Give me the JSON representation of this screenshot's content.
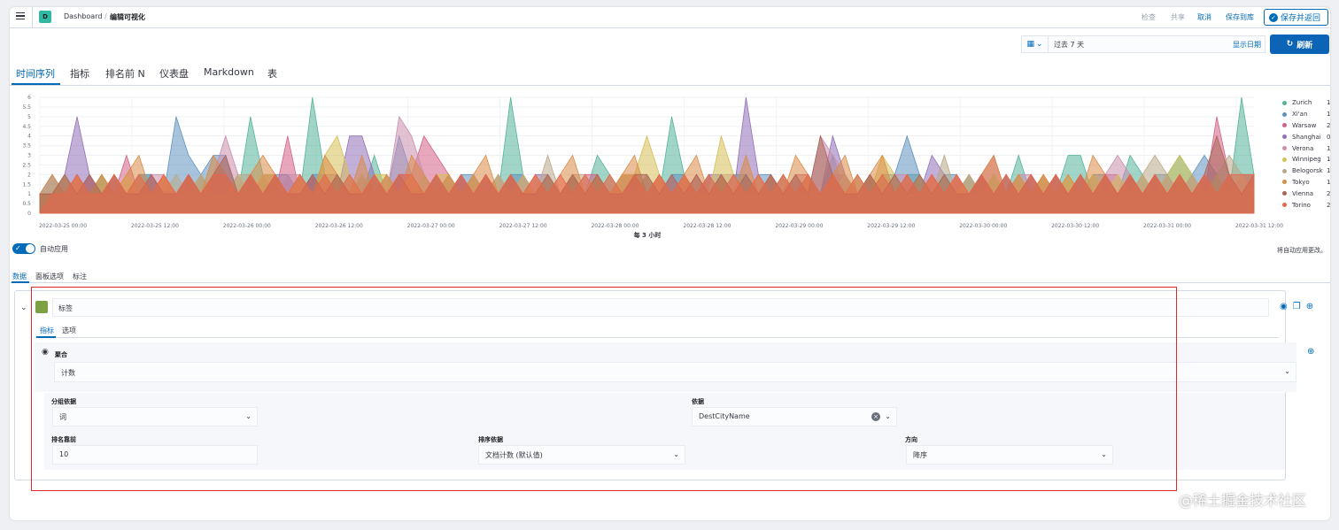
{
  "topbar": {
    "space_initial": "D",
    "breadcrumb_root": "Dashboard",
    "breadcrumb_sep": "/",
    "breadcrumb_current": "编辑可视化",
    "inspect_label": "检查",
    "share_label": "共享",
    "cancel_label": "取消",
    "save_to_library_label": "保存到库",
    "save_and_return_label": "保存并返回"
  },
  "query": {
    "date_range": "过去 7 天",
    "show_dates_label": "显示日期",
    "refresh_label": "刷新"
  },
  "tabs": [
    "时间序列",
    "指标",
    "排名前 N",
    "仪表盘",
    "Markdown",
    "表"
  ],
  "chart_data": {
    "type": "area",
    "xlabel": "每 3 小时",
    "x_ticks": [
      "2022-03-25 00:00",
      "2022-03-25 12:00",
      "2022-03-26 00:00",
      "2022-03-26 12:00",
      "2022-03-27 00:00",
      "2022-03-27 12:00",
      "2022-03-28 00:00",
      "2022-03-28 12:00",
      "2022-03-29 00:00",
      "2022-03-29 12:00",
      "2022-03-30 00:00",
      "2022-03-30 12:00",
      "2022-03-31 00:00",
      "2022-03-31 12:00"
    ],
    "y_ticks": [
      "6",
      "5.5",
      "5",
      "4.5",
      "4",
      "3.5",
      "3",
      "2.5",
      "2",
      "1.5",
      "1",
      "0.5",
      "0"
    ],
    "ylim": [
      0,
      6
    ],
    "series": [
      {
        "name": "Zurich",
        "color": "#54b399",
        "value_label": "1",
        "values": [
          1,
          1,
          1,
          2,
          1,
          2,
          1,
          1,
          2,
          2,
          1,
          1,
          1,
          2,
          1,
          2,
          1,
          5,
          2,
          1,
          2,
          1,
          6,
          2,
          1,
          2,
          1,
          3,
          1,
          2,
          2,
          1,
          1,
          2,
          1,
          2,
          1,
          1,
          6,
          2,
          1,
          2,
          1,
          2,
          1,
          3,
          2,
          1,
          2,
          1,
          1,
          5,
          2,
          1,
          2,
          1,
          2,
          2,
          1,
          1,
          2,
          1,
          2,
          1,
          3,
          1,
          2,
          1,
          2,
          1,
          2,
          2,
          1,
          2,
          1,
          2,
          1,
          2,
          1,
          3,
          1,
          2,
          1,
          3,
          3,
          1,
          2,
          1,
          3,
          2,
          1,
          2,
          3,
          2,
          1,
          2,
          1,
          6,
          2
        ]
      },
      {
        "name": "Xi'an",
        "color": "#6092c0",
        "value_label": "1",
        "values": [
          1,
          2,
          1,
          2,
          1,
          2,
          1,
          1,
          2,
          2,
          1,
          5,
          3,
          2,
          3,
          3,
          1,
          2,
          1,
          2,
          2,
          1,
          2,
          2,
          1,
          2,
          1,
          2,
          1,
          4,
          2,
          1,
          2,
          1,
          2,
          2,
          1,
          1,
          2,
          2,
          1,
          2,
          1,
          2,
          1,
          2,
          1,
          2,
          2,
          1,
          1,
          2,
          2,
          1,
          2,
          1,
          2,
          1,
          2,
          2,
          1,
          1,
          2,
          1,
          2,
          2,
          1,
          1,
          2,
          2,
          4,
          2,
          1,
          2,
          2,
          1,
          2,
          1,
          2,
          1,
          2,
          1,
          2,
          1,
          1,
          2,
          2,
          1,
          2,
          1,
          2,
          2,
          1,
          2,
          3,
          2,
          1,
          2,
          2
        ]
      },
      {
        "name": "Warsaw",
        "color": "#d36086",
        "value_label": "2",
        "values": [
          1,
          1,
          2,
          1,
          2,
          1,
          1,
          3,
          1,
          2,
          1,
          1,
          2,
          1,
          2,
          2,
          1,
          2,
          1,
          1,
          4,
          1,
          2,
          1,
          2,
          1,
          2,
          1,
          2,
          1,
          2,
          4,
          3,
          2,
          1,
          2,
          1,
          2,
          1,
          2,
          1,
          2,
          1,
          1,
          2,
          2,
          1,
          2,
          2,
          1,
          2,
          1,
          2,
          1,
          2,
          1,
          2,
          1,
          1,
          2,
          1,
          2,
          2,
          1,
          2,
          2,
          1,
          2,
          1,
          2,
          1,
          1,
          2,
          1,
          2,
          1,
          2,
          3,
          1,
          2,
          1,
          2,
          1,
          1,
          2,
          1,
          2,
          2,
          1,
          2,
          1,
          2,
          1,
          2,
          1,
          5,
          2,
          1,
          2
        ]
      },
      {
        "name": "Shanghai",
        "color": "#9170b8",
        "value_label": "0",
        "values": [
          1,
          1,
          2,
          5,
          2,
          1,
          2,
          1,
          1,
          1,
          2,
          1,
          1,
          2,
          1,
          1,
          2,
          1,
          2,
          2,
          1,
          2,
          1,
          2,
          1,
          4,
          4,
          2,
          1,
          2,
          2,
          1,
          2,
          1,
          2,
          1,
          2,
          1,
          2,
          1,
          2,
          2,
          1,
          2,
          1,
          2,
          1,
          2,
          1,
          2,
          1,
          1,
          2,
          1,
          2,
          2,
          1,
          6,
          2,
          1,
          2,
          1,
          2,
          1,
          4,
          2,
          1,
          2,
          1,
          1,
          2,
          1,
          3,
          2,
          1,
          2,
          1,
          2,
          1,
          2,
          1,
          1,
          2,
          1,
          2,
          1,
          2,
          1,
          2,
          1,
          2,
          1,
          2,
          1,
          2,
          1,
          2,
          1,
          2
        ]
      },
      {
        "name": "Verona",
        "color": "#ca8eae",
        "value_label": "1",
        "values": [
          1,
          1,
          1,
          2,
          1,
          1,
          2,
          1,
          1,
          2,
          2,
          1,
          2,
          1,
          2,
          4,
          2,
          1,
          2,
          1,
          2,
          2,
          1,
          2,
          1,
          2,
          1,
          2,
          1,
          5,
          4,
          2,
          1,
          2,
          1,
          2,
          1,
          2,
          1,
          2,
          1,
          2,
          1,
          2,
          1,
          2,
          1,
          2,
          1,
          2,
          1,
          2,
          1,
          2,
          1,
          2,
          2,
          1,
          2,
          1,
          2,
          1,
          1,
          4,
          3,
          2,
          1,
          2,
          1,
          2,
          2,
          1,
          2,
          1,
          2,
          1,
          1,
          2,
          1,
          2,
          2,
          1,
          2,
          1,
          2,
          1,
          2,
          3,
          2,
          1,
          2,
          1,
          2,
          1,
          2,
          1,
          2,
          1,
          2
        ]
      },
      {
        "name": "Winnipeg",
        "color": "#d6bf57",
        "value_label": "1",
        "values": [
          1,
          1,
          2,
          1,
          1,
          2,
          1,
          2,
          1,
          1,
          2,
          1,
          1,
          2,
          1,
          1,
          2,
          1,
          2,
          2,
          1,
          2,
          1,
          3,
          4,
          2,
          1,
          2,
          2,
          1,
          2,
          1,
          2,
          2,
          1,
          2,
          1,
          2,
          1,
          2,
          1,
          2,
          1,
          2,
          1,
          2,
          1,
          2,
          2,
          4,
          2,
          1,
          2,
          1,
          1,
          4,
          2,
          1,
          2,
          1,
          2,
          1,
          2,
          1,
          2,
          1,
          2,
          1,
          3,
          2,
          1,
          2,
          1,
          2,
          1,
          2,
          1,
          2,
          1,
          2,
          1,
          2,
          1,
          2,
          1,
          2,
          1,
          2,
          1,
          2,
          1,
          2,
          3,
          2,
          1,
          2,
          1,
          2,
          1
        ]
      },
      {
        "name": "Belogorsk",
        "color": "#b9a888",
        "value_label": "1",
        "values": [
          1,
          1,
          1,
          2,
          1,
          1,
          2,
          1,
          2,
          1,
          1,
          2,
          1,
          2,
          1,
          1,
          2,
          2,
          1,
          2,
          1,
          2,
          1,
          2,
          2,
          1,
          2,
          1,
          2,
          1,
          1,
          2,
          1,
          2,
          1,
          2,
          1,
          2,
          1,
          2,
          1,
          3,
          1,
          2,
          2,
          1,
          2,
          1,
          2,
          1,
          2,
          1,
          2,
          1,
          2,
          1,
          2,
          1,
          2,
          1,
          2,
          1,
          2,
          1,
          1,
          2,
          1,
          2,
          1,
          2,
          1,
          2,
          1,
          3,
          1,
          2,
          1,
          2,
          1,
          2,
          1,
          1,
          2,
          1,
          2,
          1,
          2,
          1,
          1,
          2,
          3,
          2,
          1,
          2,
          1,
          2,
          3,
          2,
          2
        ]
      },
      {
        "name": "Tokyo",
        "color": "#da8b45",
        "value_label": "1",
        "values": [
          1,
          2,
          1,
          2,
          1,
          2,
          1,
          2,
          3,
          1,
          2,
          1,
          2,
          1,
          3,
          2,
          1,
          2,
          3,
          2,
          1,
          2,
          1,
          3,
          2,
          1,
          3,
          1,
          2,
          1,
          3,
          2,
          1,
          2,
          1,
          2,
          3,
          1,
          2,
          1,
          2,
          1,
          2,
          3,
          1,
          2,
          1,
          2,
          3,
          1,
          2,
          1,
          2,
          3,
          1,
          2,
          1,
          3,
          1,
          2,
          1,
          3,
          2,
          1,
          2,
          3,
          1,
          2,
          3,
          1,
          2,
          1,
          2,
          1,
          2,
          1,
          2,
          3,
          1,
          2,
          1,
          2,
          1,
          2,
          1,
          3,
          2,
          1,
          2,
          1,
          2,
          1,
          2,
          1,
          2,
          1,
          2,
          1,
          2
        ]
      },
      {
        "name": "Vienna",
        "color": "#aa6556",
        "value_label": "2",
        "values": [
          1,
          1,
          2,
          1,
          2,
          1,
          2,
          1,
          1,
          2,
          1,
          1,
          2,
          1,
          2,
          3,
          1,
          2,
          1,
          2,
          1,
          1,
          2,
          1,
          2,
          1,
          1,
          2,
          1,
          2,
          1,
          1,
          2,
          1,
          2,
          1,
          2,
          1,
          2,
          1,
          1,
          2,
          1,
          2,
          1,
          2,
          1,
          1,
          2,
          2,
          1,
          2,
          1,
          2,
          1,
          2,
          1,
          2,
          1,
          2,
          1,
          2,
          1,
          4,
          2,
          1,
          1,
          2,
          1,
          2,
          1,
          2,
          1,
          2,
          1,
          1,
          2,
          1,
          2,
          1,
          2,
          1,
          2,
          1,
          2,
          1,
          2,
          1,
          2,
          1,
          2,
          1,
          2,
          1,
          2,
          4,
          2,
          1,
          2
        ]
      },
      {
        "name": "Torino",
        "color": "#e7664c",
        "value_label": "2",
        "values": [
          0,
          1,
          1,
          2,
          1,
          1,
          2,
          1,
          2,
          1,
          2,
          1,
          2,
          1,
          2,
          2,
          1,
          2,
          1,
          2,
          1,
          2,
          1,
          2,
          1,
          2,
          1,
          2,
          1,
          2,
          2,
          1,
          2,
          1,
          2,
          1,
          2,
          1,
          2,
          1,
          2,
          1,
          2,
          1,
          2,
          1,
          2,
          1,
          2,
          1,
          2,
          1,
          2,
          1,
          2,
          1,
          2,
          1,
          2,
          1,
          2,
          1,
          2,
          1,
          2,
          1,
          2,
          1,
          2,
          1,
          2,
          1,
          2,
          1,
          2,
          1,
          2,
          1,
          2,
          1,
          2,
          1,
          2,
          1,
          2,
          1,
          2,
          1,
          2,
          1,
          2,
          1,
          2,
          1,
          2,
          1,
          2,
          2,
          2
        ]
      }
    ]
  },
  "auto_apply_label": "自动应用",
  "auto_save_note": "将自动应用更改。",
  "editor_tabs": [
    "数据",
    "面板选项",
    "标注"
  ],
  "series_editor": {
    "label_value": "标签",
    "inner_tabs": [
      "指标",
      "选项"
    ],
    "aggregation_label": "聚合",
    "aggregation_value": "计数",
    "group_by_label": "分组依据",
    "group_by_value": "词",
    "by_label": "依据",
    "by_value": "DestCityName",
    "top_n_label": "排名靠前",
    "top_n_value": "10",
    "order_by_label": "排序依据",
    "order_by_value": "文档计数 (默认值)",
    "direction_label": "方向",
    "direction_value": "降序"
  },
  "watermark": "@稀土掘金技术社区"
}
